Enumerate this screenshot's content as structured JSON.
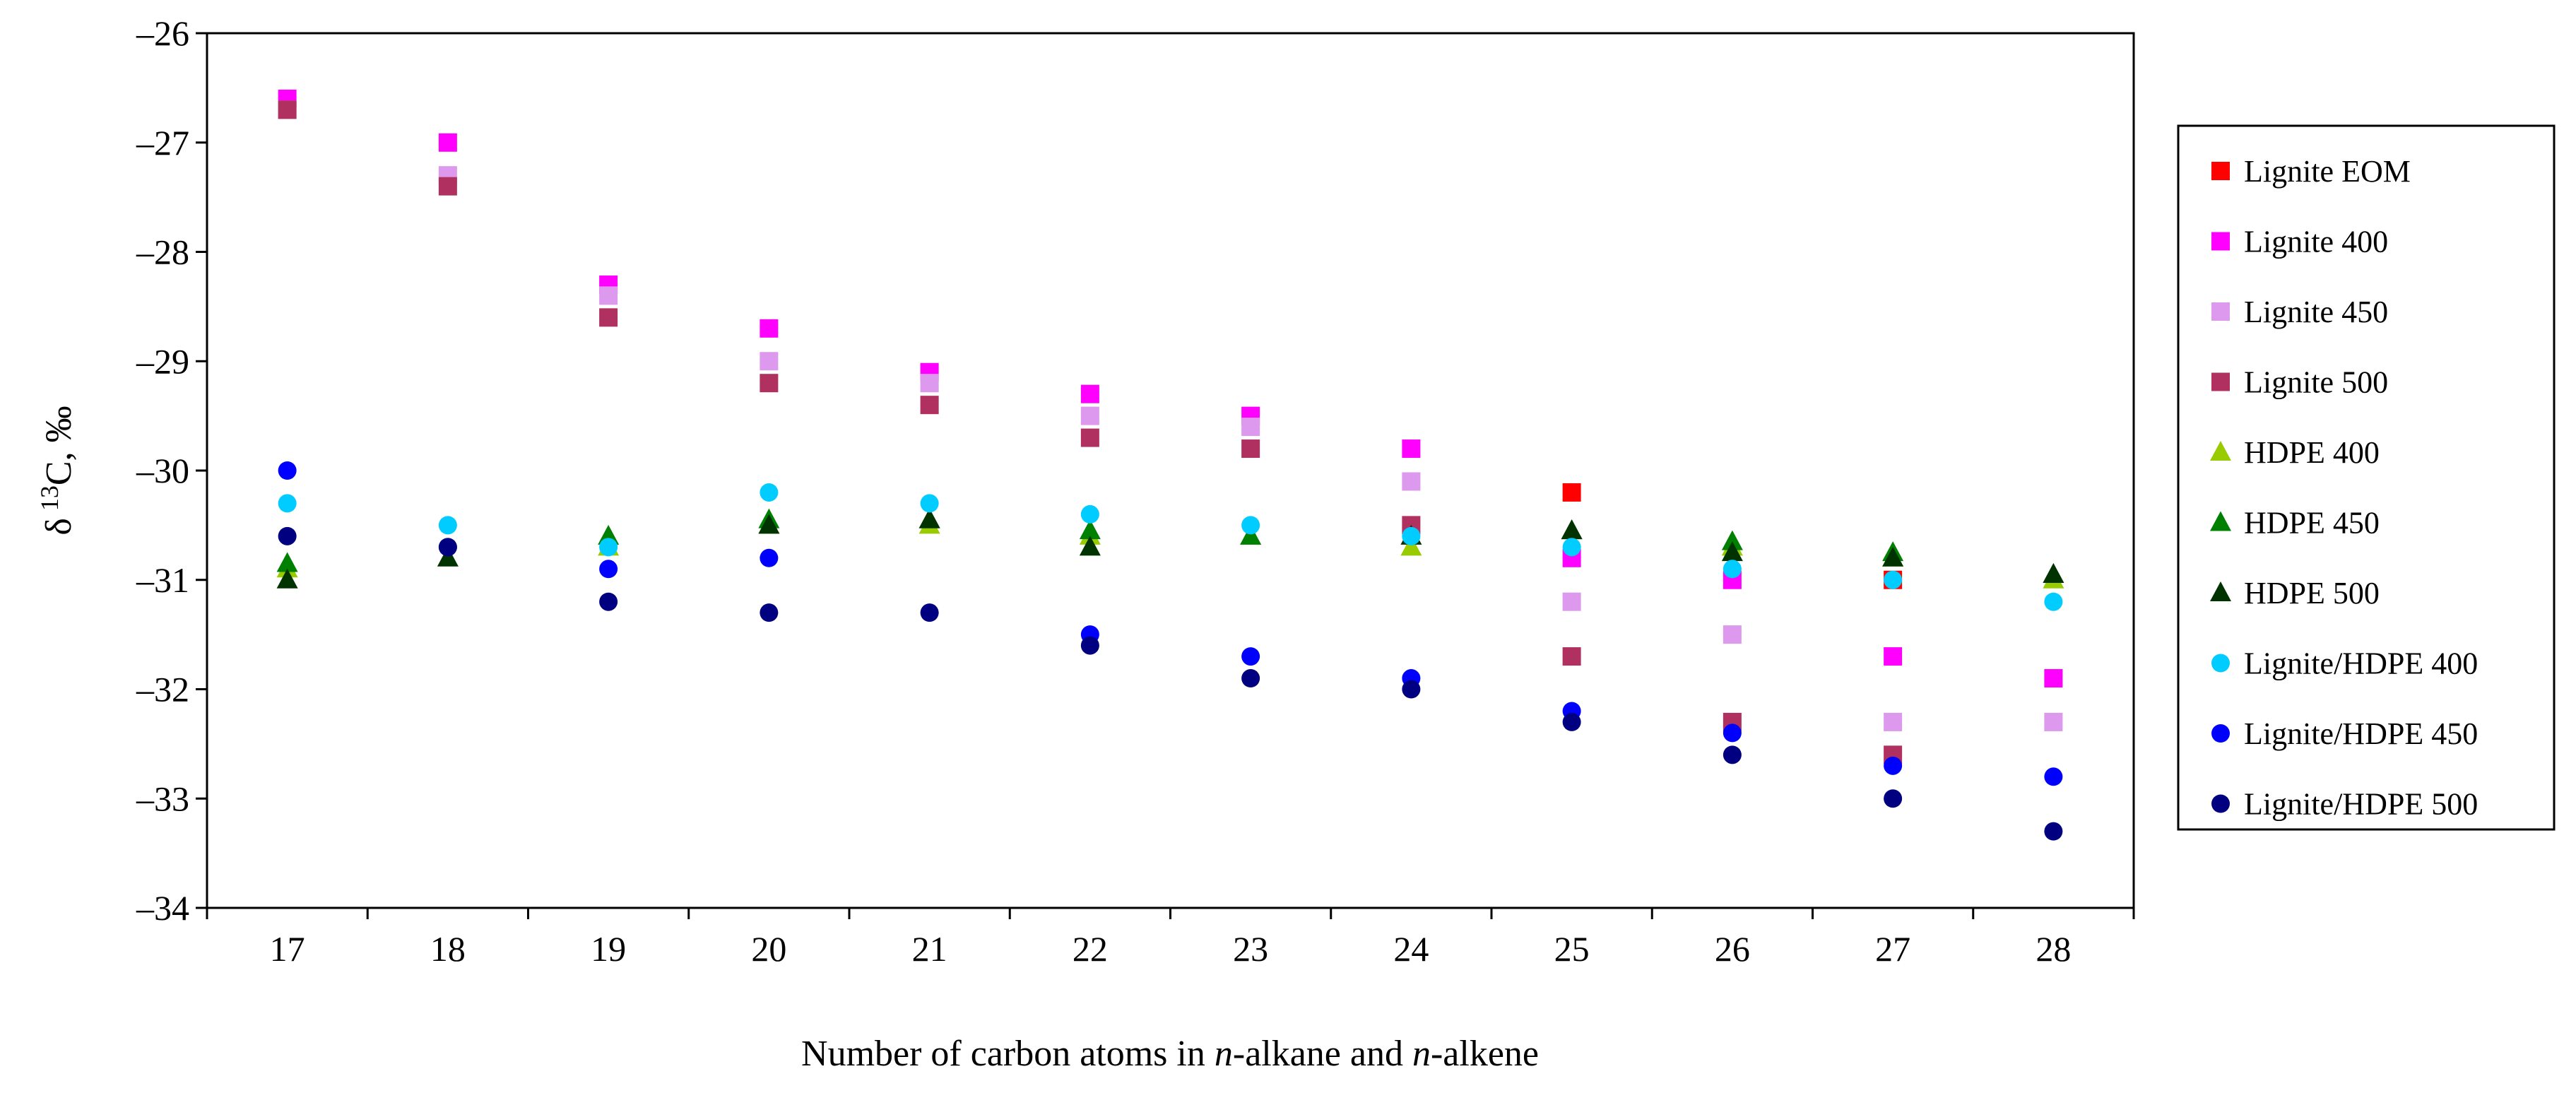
{
  "chart_data": {
    "type": "scatter",
    "title": "",
    "xlabel_parts": [
      "Number of carbon atoms in ",
      "n",
      "-alkane and ",
      "n",
      "-alkene"
    ],
    "ylabel_parts": [
      "δ",
      "13",
      "C, ",
      "‰"
    ],
    "xlim": [
      16.5,
      28.5
    ],
    "ylim": [
      -34,
      -26
    ],
    "xticks": [
      17,
      18,
      19,
      20,
      21,
      22,
      23,
      24,
      25,
      26,
      27,
      28
    ],
    "yticks": [
      -34,
      -33,
      -32,
      -31,
      -30,
      -29,
      -28,
      -27,
      -26
    ],
    "ytick_labels": [
      "–34",
      "–33",
      "–32",
      "–31",
      "–30",
      "–29",
      "–28",
      "–27",
      "–26"
    ],
    "grid": false,
    "legend_position": "right",
    "series": [
      {
        "name": "Lignite EOM",
        "marker": "square",
        "color": "#FF0000",
        "x": [
          25,
          27
        ],
        "y": [
          -30.2,
          -31.0
        ]
      },
      {
        "name": "Lignite 400",
        "marker": "square",
        "color": "#FF00FF",
        "x": [
          17,
          18,
          19,
          20,
          21,
          22,
          23,
          24,
          25,
          26,
          27,
          28
        ],
        "y": [
          -26.6,
          -27.0,
          -28.3,
          -28.7,
          -29.1,
          -29.3,
          -29.5,
          -29.8,
          -30.8,
          -31.0,
          -31.7,
          -31.9
        ]
      },
      {
        "name": "Lignite 450",
        "marker": "square",
        "color": "#DD99EE",
        "x": [
          17,
          18,
          19,
          20,
          21,
          22,
          23,
          24,
          25,
          26,
          27,
          28
        ],
        "y": [
          -26.7,
          -27.3,
          -28.4,
          -29.0,
          -29.2,
          -29.5,
          -29.6,
          -30.1,
          -31.2,
          -31.5,
          -32.3,
          -32.3
        ]
      },
      {
        "name": "Lignite 500",
        "marker": "square",
        "color": "#B03060",
        "x": [
          17,
          18,
          19,
          20,
          21,
          22,
          23,
          24,
          25,
          26,
          27
        ],
        "y": [
          -26.7,
          -27.4,
          -28.6,
          -29.2,
          -29.4,
          -29.7,
          -29.8,
          -30.5,
          -31.7,
          -32.3,
          -32.6
        ]
      },
      {
        "name": "HDPE 400",
        "marker": "triangle",
        "color": "#99CC00",
        "x": [
          17,
          19,
          20,
          21,
          22,
          23,
          24,
          26,
          27,
          28
        ],
        "y": [
          -30.9,
          -30.7,
          -30.5,
          -30.5,
          -30.6,
          -30.6,
          -30.7,
          -30.7,
          -30.8,
          -31.0
        ]
      },
      {
        "name": "HDPE 450",
        "marker": "triangle",
        "color": "#008000",
        "x": [
          17,
          19,
          20,
          21,
          22,
          23,
          25,
          26,
          27,
          28
        ],
        "y": [
          -30.85,
          -30.6,
          -30.45,
          -30.45,
          -30.55,
          -30.6,
          -30.55,
          -30.65,
          -30.75,
          -30.95
        ]
      },
      {
        "name": "HDPE 500",
        "marker": "triangle",
        "color": "#003300",
        "x": [
          17,
          18,
          20,
          21,
          22,
          24,
          25,
          26,
          27,
          28
        ],
        "y": [
          -31.0,
          -30.8,
          -30.5,
          -30.45,
          -30.7,
          -30.6,
          -30.55,
          -30.75,
          -30.8,
          -30.95
        ]
      },
      {
        "name": "Lignite/HDPE 400",
        "marker": "circle",
        "color": "#00CCFF",
        "x": [
          17,
          18,
          19,
          20,
          21,
          22,
          23,
          24,
          25,
          26,
          27,
          28
        ],
        "y": [
          -30.3,
          -30.5,
          -30.7,
          -30.2,
          -30.3,
          -30.4,
          -30.5,
          -30.6,
          -30.7,
          -30.9,
          -31.0,
          -31.2
        ]
      },
      {
        "name": "Lignite/HDPE 450",
        "marker": "circle",
        "color": "#0000FF",
        "x": [
          17,
          18,
          19,
          20,
          22,
          23,
          24,
          25,
          26,
          27,
          28
        ],
        "y": [
          -30.0,
          -30.7,
          -30.9,
          -30.8,
          -31.5,
          -31.7,
          -31.9,
          -32.2,
          -32.4,
          -32.7,
          -32.8
        ]
      },
      {
        "name": "Lignite/HDPE 500",
        "marker": "circle",
        "color": "#000080",
        "x": [
          17,
          18,
          19,
          20,
          21,
          22,
          23,
          24,
          25,
          26,
          27,
          28
        ],
        "y": [
          -30.6,
          -30.7,
          -31.2,
          -31.3,
          -31.3,
          -31.6,
          -31.9,
          -32.0,
          -32.3,
          -32.6,
          -33.0,
          -33.3
        ]
      }
    ]
  }
}
